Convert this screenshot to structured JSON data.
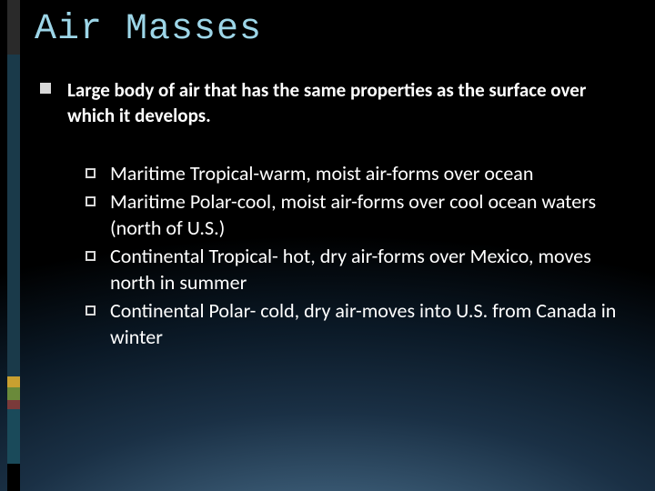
{
  "slide": {
    "title": "Air Masses",
    "title_color": "#9dd6e8",
    "title_font": "Consolas, monospace",
    "title_fontsize": 40,
    "background_gradient_stops": [
      "#000000",
      "#0a1825",
      "#1a3045",
      "#3a5a74",
      "#5a7a94"
    ],
    "accent_strip_colors": [
      "#2a2a2a",
      "#1a3a4a",
      "#c9a030",
      "#6a8a3a",
      "#7a3a3a",
      "#1a4a5a",
      "#000000"
    ],
    "body_color": "#ffffff",
    "main_bullet": {
      "marker_style": "filled-square",
      "marker_color": "#d8d8d8",
      "fontsize": 21,
      "fontweight": 600,
      "text": "Large body of air that has the same properties as the surface over which it develops."
    },
    "sub_bullets": {
      "marker_style": "hollow-square",
      "marker_color": "#d8d8d8",
      "fontsize": 22,
      "fontweight": 400,
      "items": [
        "Maritime Tropical-warm, moist air-forms over ocean",
        "Maritime Polar-cool, moist air-forms over cool ocean waters (north of U.S.)",
        "Continental Tropical- hot, dry air-forms over Mexico, moves north in summer",
        "Continental Polar- cold, dry air-moves into U.S. from Canada in winter"
      ]
    }
  }
}
